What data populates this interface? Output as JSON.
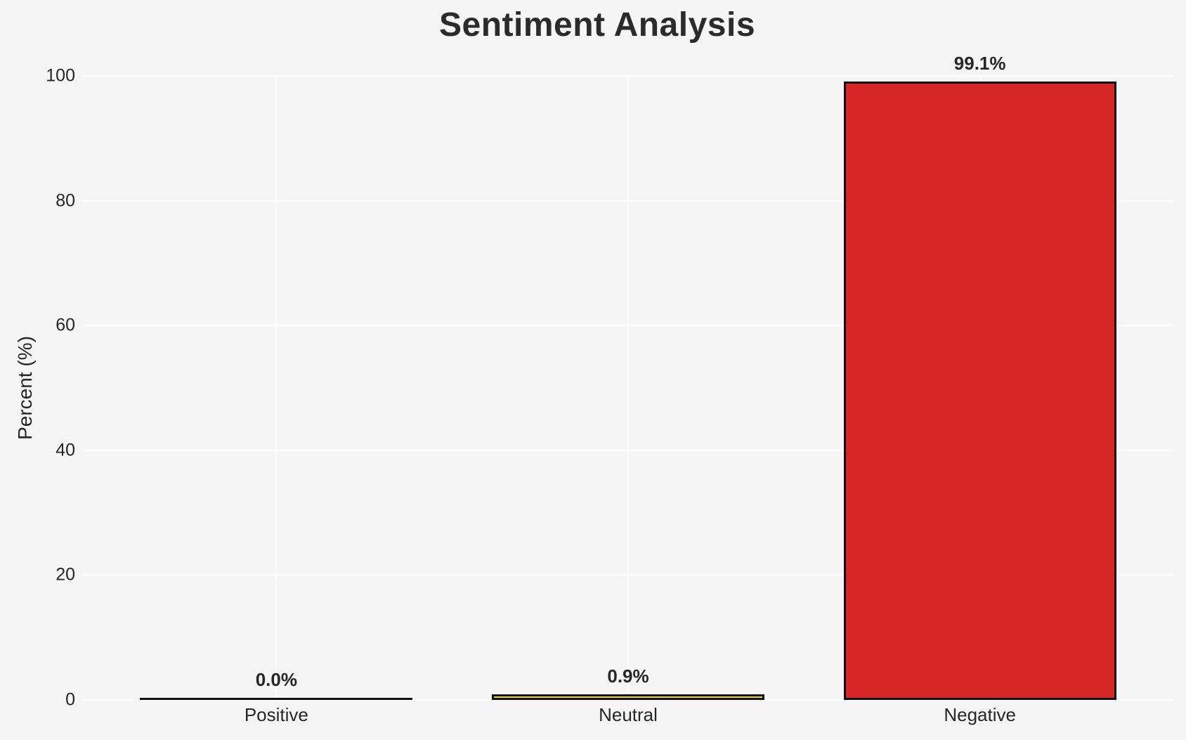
{
  "chart_data": {
    "type": "bar",
    "title": "Sentiment Analysis",
    "xlabel": "",
    "ylabel": "Percent (%)",
    "categories": [
      "Positive",
      "Neutral",
      "Negative"
    ],
    "values": [
      0.0,
      0.9,
      99.1
    ],
    "value_labels": [
      "0.0%",
      "0.9%",
      "99.1%"
    ],
    "bar_colors": [
      "none",
      "#f5d23c",
      "#d62728"
    ],
    "bar_edge_color": "#111111",
    "yticks": [
      0,
      20,
      40,
      60,
      80,
      100
    ],
    "ylim": [
      0,
      100
    ],
    "xlim": [
      -0.55,
      2.55
    ],
    "bar_width": 0.775,
    "grid": true,
    "legend": false,
    "background_color": "#f5f5f6",
    "grid_color": "#ffffff",
    "text_color": "#262626"
  }
}
